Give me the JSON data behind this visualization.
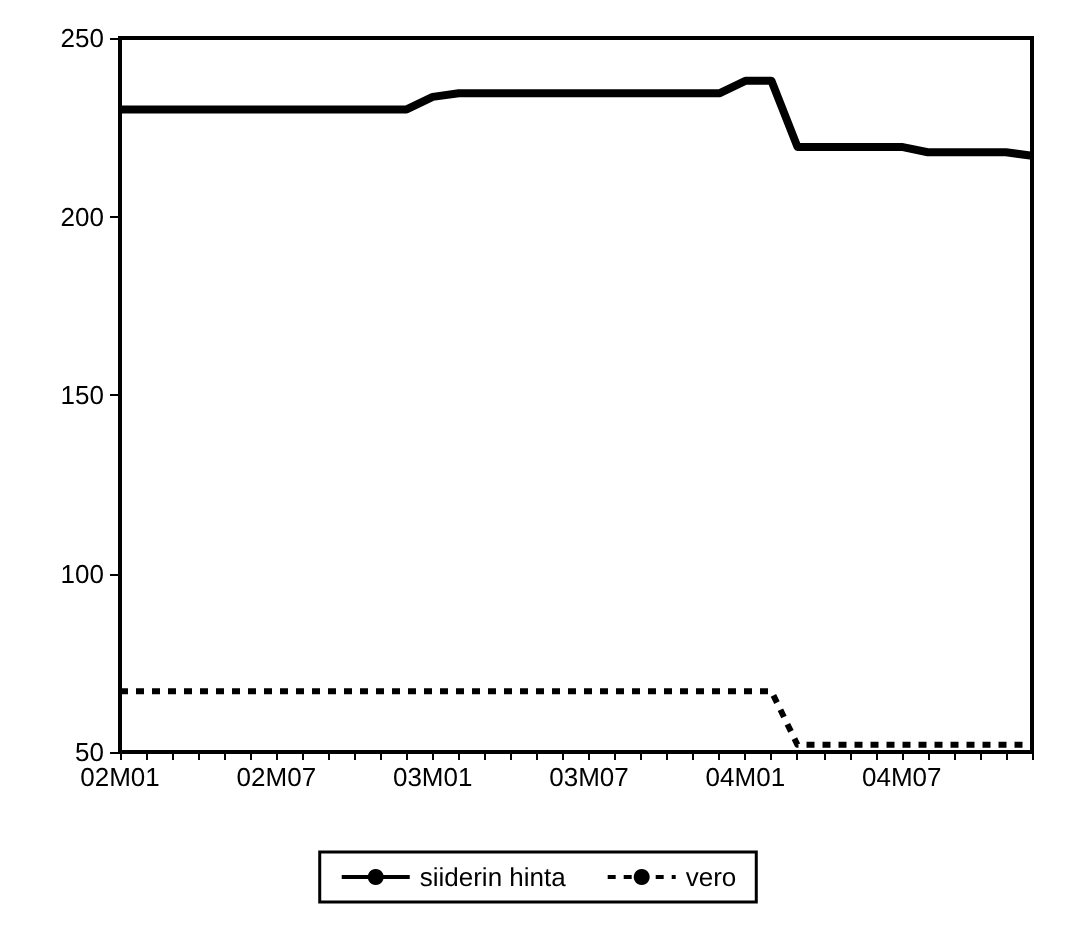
{
  "chart_data": {
    "type": "line",
    "categories": [
      "02M01",
      null,
      null,
      null,
      null,
      null,
      "02M07",
      null,
      null,
      null,
      null,
      null,
      "03M01",
      null,
      null,
      null,
      null,
      null,
      "03M07",
      null,
      null,
      null,
      null,
      null,
      "04M01",
      null,
      null,
      null,
      null,
      null,
      "04M07",
      null,
      null,
      null,
      null,
      null
    ],
    "series": [
      {
        "name": "siiderin hinta",
        "color": "#000000",
        "line_style": "solid",
        "values": [
          230,
          230,
          230,
          230,
          230,
          230,
          230,
          230,
          230,
          230,
          230,
          230,
          233.5,
          234.5,
          234.5,
          234.5,
          234.5,
          234.5,
          234.5,
          234.5,
          234.5,
          234.5,
          234.5,
          234.5,
          238,
          238,
          219.5,
          219.5,
          219.5,
          219.5,
          219.5,
          218,
          218,
          218,
          218,
          217
        ]
      },
      {
        "name": "vero",
        "color": "#000000",
        "line_style": "dashed",
        "values": [
          67,
          67,
          67,
          67,
          67,
          67,
          67,
          67,
          67,
          67,
          67,
          67,
          67,
          67,
          67,
          67,
          67,
          67,
          67,
          67,
          67,
          67,
          67,
          67,
          67,
          67,
          52,
          52,
          52,
          52,
          52,
          52,
          52,
          52,
          52,
          52
        ]
      }
    ],
    "ylim": [
      50,
      250
    ],
    "yticks": [
      50,
      100,
      150,
      200,
      250
    ],
    "grid": false,
    "legend": "bottom",
    "marker": "none"
  }
}
